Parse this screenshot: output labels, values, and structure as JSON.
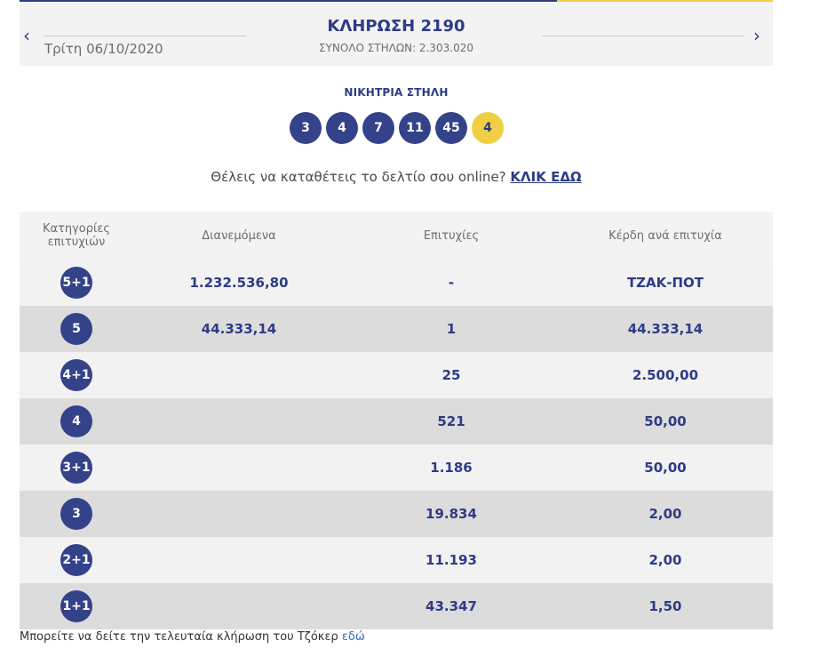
{
  "header": {
    "prev_icon": "chevron-left-icon",
    "next_icon": "chevron-right-icon",
    "prev_glyph": "‹",
    "next_glyph": "›",
    "date": "Τρίτη 06/10/2020",
    "title": "ΚΛΗΡΩΣΗ 2190",
    "total_columns": "ΣΥΝΟΛΟ ΣΤΗΛΩΝ: 2.303.020"
  },
  "winning": {
    "label": "ΝΙΚΗΤΡΙΑ ΣΤΗΛΗ",
    "numbers": [
      "3",
      "4",
      "7",
      "11",
      "45"
    ],
    "joker": "4"
  },
  "cta": {
    "text": "Θέλεις να καταθέτεις το δελτίο σου online?",
    "link": "ΚΛΙΚ ΕΔΩ"
  },
  "table": {
    "headers": {
      "category_line1": "Κατηγορίες",
      "category_line2": "επιτυχιών",
      "distributed": "Διανεμόμενα",
      "winners": "Επιτυχίες",
      "prize": "Κέρδη ανά επιτυχία"
    },
    "rows": [
      {
        "category": "5+1",
        "distributed": "1.232.536,80",
        "winners": "-",
        "prize": "ΤΖΑΚ-ΠΟΤ"
      },
      {
        "category": "5",
        "distributed": "44.333,14",
        "winners": "1",
        "prize": "44.333,14"
      },
      {
        "category": "4+1",
        "distributed": "",
        "winners": "25",
        "prize": "2.500,00"
      },
      {
        "category": "4",
        "distributed": "",
        "winners": "521",
        "prize": "50,00"
      },
      {
        "category": "3+1",
        "distributed": "",
        "winners": "1.186",
        "prize": "50,00"
      },
      {
        "category": "3",
        "distributed": "",
        "winners": "19.834",
        "prize": "2,00"
      },
      {
        "category": "2+1",
        "distributed": "",
        "winners": "11.193",
        "prize": "2,00"
      },
      {
        "category": "1+1",
        "distributed": "",
        "winners": "43.347",
        "prize": "1,50"
      }
    ]
  },
  "footer": {
    "text": "Μπορείτε να δείτε την τελευταία κλήρωση του Τζόκερ",
    "link": "εδώ"
  },
  "colors": {
    "primary": "#2d3c85",
    "joker_yellow": "#f0cf45",
    "row_light": "#f2f2f2",
    "row_dark": "#dcdcdc"
  }
}
